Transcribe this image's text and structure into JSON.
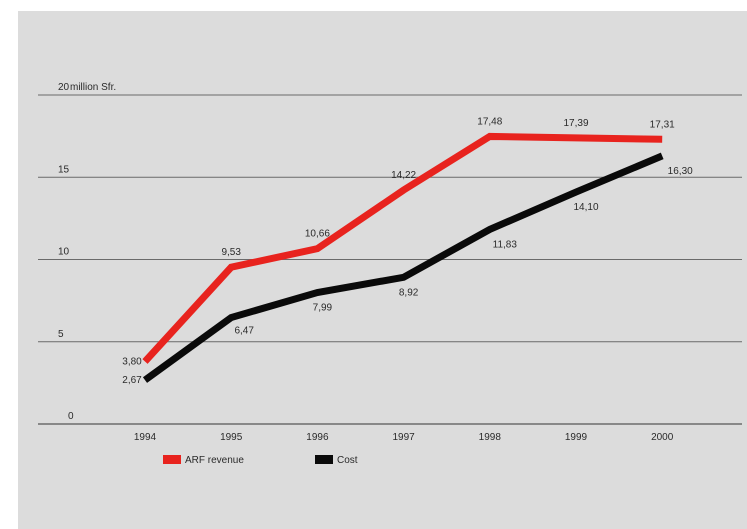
{
  "chart_data": {
    "type": "line",
    "unit_label": "million Sfr.",
    "categories": [
      "1994",
      "1995",
      "1996",
      "1997",
      "1998",
      "1999",
      "2000"
    ],
    "ylim": [
      0,
      20
    ],
    "yticks": [
      0,
      5,
      10,
      15,
      20
    ],
    "grid": true,
    "legend_position": "bottom-left",
    "series": [
      {
        "name": "ARF revenue",
        "color": "#e8231e",
        "values": [
          3.8,
          9.53,
          10.66,
          14.22,
          17.48,
          17.39,
          17.31
        ],
        "labels": [
          "3,80",
          "9,53",
          "10,66",
          "14,22",
          "17,48",
          "17,39",
          "17,31"
        ]
      },
      {
        "name": "Cost",
        "color": "#0a0a0a",
        "values": [
          2.67,
          6.47,
          7.99,
          8.92,
          11.83,
          14.1,
          16.3
        ],
        "labels": [
          "2,67",
          "6,47",
          "7,99",
          "8,92",
          "11,83",
          "14,10",
          "16,30"
        ]
      }
    ]
  }
}
